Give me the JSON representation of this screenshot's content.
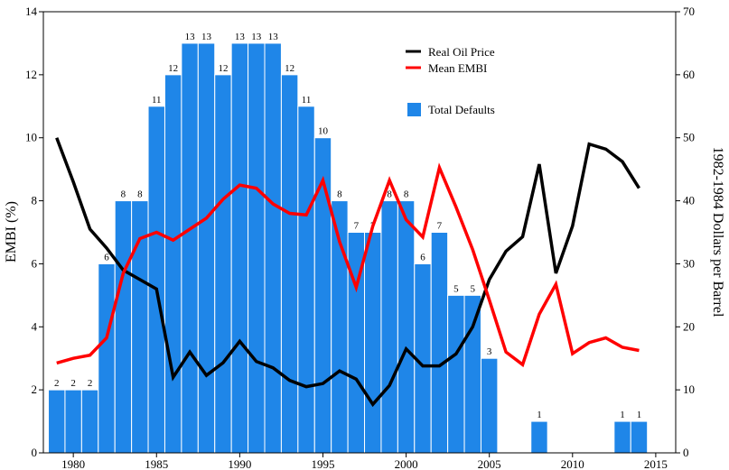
{
  "chart_data": {
    "type": "bar+line",
    "title": "",
    "xlabel": "",
    "ylabel_left": "EMBI (%)",
    "ylabel_right": "1982-1984 Dollars per Barrel",
    "xlim": [
      1978.2,
      2016.2
    ],
    "ylim_left": [
      0,
      14
    ],
    "ylim_right": [
      0,
      70
    ],
    "x_ticks": [
      "1980",
      "1985",
      "1990",
      "1995",
      "2000",
      "2005",
      "2010",
      "2015"
    ],
    "y_left_ticks": [
      "0",
      "2",
      "4",
      "6",
      "8",
      "10",
      "12",
      "14"
    ],
    "y_right_ticks": [
      "0",
      "10",
      "20",
      "30",
      "40",
      "50",
      "60",
      "70"
    ],
    "grid": false,
    "legend_position": "top-center",
    "colors": {
      "bars": "#1f86e8",
      "oil": "#000000",
      "embi": "#ff0000"
    },
    "series": [
      {
        "name": "Total Defaults",
        "type": "bar",
        "axis": "left",
        "x": [
          1979,
          1980,
          1981,
          1982,
          1983,
          1984,
          1985,
          1986,
          1987,
          1988,
          1989,
          1990,
          1991,
          1992,
          1993,
          1994,
          1995,
          1996,
          1997,
          1998,
          1999,
          2000,
          2001,
          2002,
          2003,
          2004,
          2005,
          2008,
          2013,
          2014
        ],
        "values": [
          2,
          2,
          2,
          6,
          8,
          8,
          11,
          12,
          13,
          13,
          12,
          13,
          13,
          13,
          12,
          11,
          10,
          8,
          7,
          7,
          8,
          8,
          6,
          7,
          5,
          5,
          3,
          1,
          1,
          1
        ],
        "labels": [
          "2",
          "2",
          "2",
          "6",
          "8",
          "8",
          "11",
          "12",
          "13",
          "13",
          "12",
          "13",
          "13",
          "13",
          "12",
          "11",
          "10",
          "8",
          "7",
          "7",
          "8",
          "8",
          "6",
          "7",
          "5",
          "5",
          "3",
          "1",
          "1",
          "1"
        ]
      },
      {
        "name": "Real Oil Price",
        "type": "line",
        "axis": "right",
        "x": [
          1979,
          1980,
          1981,
          1982,
          1983,
          1984,
          1985,
          1986,
          1987,
          1988,
          1989,
          1990,
          1991,
          1992,
          1993,
          1994,
          1995,
          1996,
          1997,
          1998,
          1999,
          2000,
          2001,
          2002,
          2003,
          2004,
          2005,
          2006,
          2007,
          2008,
          2009,
          2010,
          2011,
          2012,
          2013,
          2014
        ],
        "values": [
          50,
          43,
          35.5,
          32.5,
          29,
          27.5,
          26,
          12,
          16,
          12.3,
          14.3,
          17.7,
          14.5,
          13.5,
          11.5,
          10.5,
          11,
          13,
          11.7,
          7.7,
          10.7,
          16.5,
          13.8,
          13.8,
          15.7,
          20,
          27.5,
          32,
          34.3,
          45.8,
          28.5,
          36,
          49,
          48.2,
          46.2,
          42
        ]
      },
      {
        "name": "Mean EMBI",
        "type": "line",
        "axis": "left",
        "x": [
          1979,
          1980,
          1981,
          1982,
          1983,
          1984,
          1985,
          1986,
          1987,
          1988,
          1989,
          1990,
          1991,
          1992,
          1993,
          1994,
          1995,
          1996,
          1997,
          1998,
          1999,
          2000,
          2001,
          2002,
          2003,
          2004,
          2005,
          2006,
          2007,
          2008,
          2009,
          2010,
          2011,
          2012,
          2013,
          2014
        ],
        "values": [
          2.85,
          3,
          3.1,
          3.65,
          5.7,
          6.8,
          7,
          6.75,
          7.1,
          7.45,
          8.05,
          8.5,
          8.4,
          7.9,
          7.6,
          7.55,
          8.65,
          6.7,
          5.25,
          7.2,
          8.65,
          7.4,
          6.85,
          9.05,
          7.8,
          6.45,
          4.85,
          3.2,
          2.8,
          4.4,
          5.35,
          3.15,
          3.5,
          3.65,
          3.35,
          3.25
        ]
      }
    ],
    "legend": [
      {
        "label": "Real Oil Price",
        "swatch": "line",
        "color": "#000000"
      },
      {
        "label": "Mean EMBI",
        "swatch": "line",
        "color": "#ff0000"
      },
      {
        "label": "Total Defaults",
        "swatch": "box",
        "color": "#1f86e8"
      }
    ]
  }
}
